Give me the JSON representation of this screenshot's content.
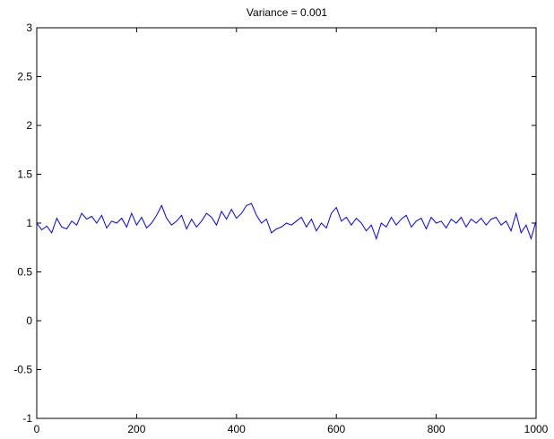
{
  "chart_data": {
    "type": "line",
    "title": "Variance = 0.001",
    "xlabel": "",
    "ylabel": "",
    "xlim": [
      0,
      1000
    ],
    "ylim": [
      -1,
      3
    ],
    "xticks": [
      0,
      200,
      400,
      600,
      800,
      1000
    ],
    "yticks": [
      -1,
      -0.5,
      0,
      0.5,
      1,
      1.5,
      2,
      2.5,
      3
    ],
    "xtick_labels": [
      "0",
      "200",
      "400",
      "600",
      "800",
      "1000"
    ],
    "ytick_labels": [
      "-1",
      "-0.5",
      "0",
      "0.5",
      "1",
      "1.5",
      "2",
      "2.5",
      "3"
    ],
    "grid": false,
    "line_color": "#0000ff",
    "series": [
      {
        "x": [
          0,
          10,
          20,
          30,
          40,
          50,
          60,
          70,
          80,
          90,
          100,
          110,
          120,
          130,
          140,
          150,
          160,
          170,
          180,
          190,
          200,
          210,
          220,
          230,
          240,
          250,
          260,
          270,
          280,
          290,
          300,
          310,
          320,
          330,
          340,
          350,
          360,
          370,
          380,
          390,
          400,
          410,
          420,
          430,
          440,
          450,
          460,
          470,
          480,
          490,
          500,
          510,
          520,
          530,
          540,
          550,
          560,
          570,
          580,
          590,
          600,
          610,
          620,
          630,
          640,
          650,
          660,
          670,
          680,
          690,
          700,
          710,
          720,
          730,
          740,
          750,
          760,
          770,
          780,
          790,
          800,
          810,
          820,
          830,
          840,
          850,
          860,
          870,
          880,
          890,
          900,
          910,
          920,
          930,
          940,
          950,
          960,
          970,
          980,
          990,
          1000
        ],
        "values": [
          1.0,
          0.93,
          0.97,
          0.9,
          1.05,
          0.96,
          0.94,
          1.02,
          0.98,
          1.1,
          1.04,
          1.07,
          1.0,
          1.08,
          0.95,
          1.02,
          1.0,
          1.05,
          0.96,
          1.1,
          0.98,
          1.06,
          0.95,
          1.0,
          1.08,
          1.18,
          1.05,
          0.98,
          1.02,
          1.08,
          0.94,
          1.04,
          0.96,
          1.02,
          1.1,
          1.06,
          0.98,
          1.12,
          1.04,
          1.14,
          1.05,
          1.1,
          1.18,
          1.2,
          1.08,
          1.0,
          1.04,
          0.9,
          0.94,
          0.96,
          1.0,
          0.98,
          1.02,
          1.06,
          0.96,
          1.04,
          0.92,
          1.0,
          0.95,
          1.1,
          1.16,
          1.02,
          1.06,
          0.98,
          1.05,
          1.0,
          0.92,
          0.98,
          0.84,
          1.0,
          0.96,
          1.06,
          0.98,
          1.04,
          1.08,
          0.96,
          1.02,
          1.05,
          0.94,
          1.06,
          1.0,
          1.02,
          0.95,
          1.04,
          1.0,
          1.06,
          0.96,
          1.04,
          1.0,
          1.05,
          0.98,
          1.04,
          1.06,
          0.98,
          1.02,
          0.92,
          1.1,
          0.9,
          0.98,
          0.84,
          1.02
        ]
      }
    ]
  }
}
